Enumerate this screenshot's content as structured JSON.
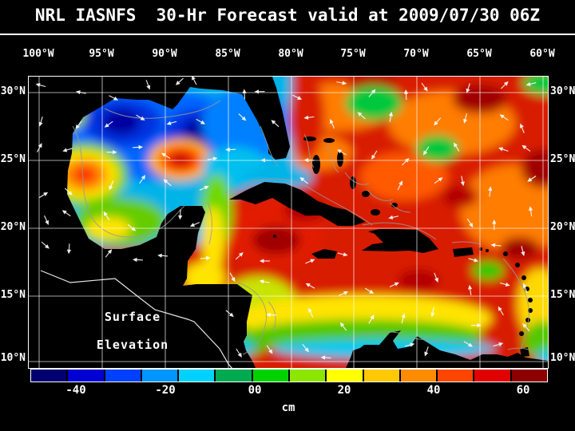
{
  "title": "NRL IASNFS  30-Hr Forecast valid at 2009/07/30 06Z",
  "axes": {
    "lon_labels": [
      "100°W",
      "95°W",
      "90°W",
      "85°W",
      "80°W",
      "75°W",
      "70°W",
      "65°W",
      "60°W"
    ],
    "lat_labels_left": [
      "30°N",
      "25°N",
      "20°N",
      "15°N",
      "10°N"
    ],
    "lat_labels_right": [
      "30°N",
      "25°N",
      "20°N",
      "15°N",
      "10°N"
    ]
  },
  "map_annotation": {
    "line1": "Surface",
    "line2": "Elevation"
  },
  "colorbar": {
    "tick_labels": [
      "-40",
      "-20",
      "00",
      "20",
      "40",
      "60"
    ],
    "unit_label": "cm",
    "segment_colors": [
      "#000070",
      "#0000d2",
      "#0041ff",
      "#0096ff",
      "#00d2ff",
      "#00aa50",
      "#00d200",
      "#8ce600",
      "#ffff00",
      "#ffc800",
      "#ff8c00",
      "#ff4600",
      "#e10000",
      "#8c0000"
    ]
  }
}
